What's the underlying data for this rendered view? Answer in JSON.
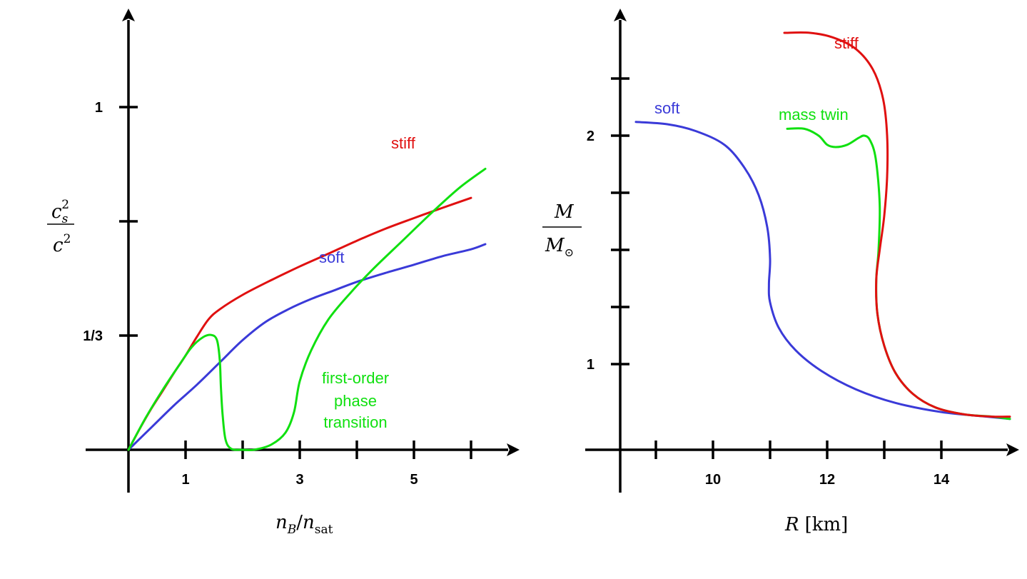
{
  "chart_data": [
    {
      "type": "line",
      "panel": "left",
      "xlabel": {
        "base": "n",
        "sub1": "B",
        "sep": "/",
        "base2": "n",
        "sub2": "sat"
      },
      "ylabel": {
        "num_base": "c",
        "num_sub": "s",
        "num_sup": "2",
        "den_base": "c",
        "den_sup": "2"
      },
      "xlim": [
        0,
        6.7
      ],
      "ylim": [
        -0.3,
        1.3
      ],
      "x_ticks": [
        1,
        2,
        3,
        4,
        5,
        6
      ],
      "x_tick_labels": [
        {
          "x": 1,
          "label": "1"
        },
        {
          "x": 3,
          "label": "3"
        },
        {
          "x": 5,
          "label": "5"
        }
      ],
      "y_ticks": [
        0.3333,
        0.6667,
        1.0
      ],
      "y_tick_labels": [
        {
          "y": 0.3333,
          "label": "1/3"
        },
        {
          "y": 1.0,
          "label": "1"
        }
      ],
      "series": [
        {
          "name": "stiff",
          "color": "#e01010",
          "points": [
            [
              0,
              0
            ],
            [
              0.2,
              0.062
            ],
            [
              0.4,
              0.12
            ],
            [
              0.6,
              0.172
            ],
            [
              0.8,
              0.225
            ],
            [
              1.0,
              0.275
            ],
            [
              1.2,
              0.33
            ],
            [
              1.4,
              0.38
            ],
            [
              1.6,
              0.41
            ],
            [
              2.0,
              0.452
            ],
            [
              2.5,
              0.495
            ],
            [
              3.0,
              0.535
            ],
            [
              3.5,
              0.572
            ],
            [
              4.0,
              0.61
            ],
            [
              4.5,
              0.645
            ],
            [
              5.0,
              0.676
            ],
            [
              5.5,
              0.706
            ],
            [
              6.0,
              0.735
            ]
          ]
        },
        {
          "name": "soft",
          "color": "#3a3ad8",
          "points": [
            [
              0,
              0
            ],
            [
              0.4,
              0.065
            ],
            [
              0.8,
              0.13
            ],
            [
              1.2,
              0.19
            ],
            [
              1.6,
              0.255
            ],
            [
              2.0,
              0.32
            ],
            [
              2.4,
              0.373
            ],
            [
              2.8,
              0.41
            ],
            [
              3.2,
              0.44
            ],
            [
              3.6,
              0.465
            ],
            [
              4.0,
              0.49
            ],
            [
              4.5,
              0.516
            ],
            [
              5.0,
              0.54
            ],
            [
              5.5,
              0.565
            ],
            [
              6.0,
              0.585
            ],
            [
              6.25,
              0.6
            ]
          ]
        },
        {
          "name": "first-order phase transition",
          "color": "#10e010",
          "points": [
            [
              0,
              0
            ],
            [
              0.3,
              0.093
            ],
            [
              0.6,
              0.175
            ],
            [
              0.9,
              0.25
            ],
            [
              1.1,
              0.298
            ],
            [
              1.3,
              0.328
            ],
            [
              1.45,
              0.335
            ],
            [
              1.55,
              0.32
            ],
            [
              1.6,
              0.26
            ],
            [
              1.62,
              0.18
            ],
            [
              1.65,
              0.1
            ],
            [
              1.7,
              0.03
            ],
            [
              1.8,
              0.003
            ],
            [
              2.0,
              0.0
            ],
            [
              2.2,
              0.0
            ],
            [
              2.5,
              0.015
            ],
            [
              2.75,
              0.05
            ],
            [
              2.9,
              0.11
            ],
            [
              3.0,
              0.2
            ],
            [
              3.2,
              0.29
            ],
            [
              3.5,
              0.38
            ],
            [
              3.9,
              0.46
            ],
            [
              4.3,
              0.53
            ],
            [
              4.8,
              0.61
            ],
            [
              5.3,
              0.69
            ],
            [
              5.8,
              0.765
            ],
            [
              6.25,
              0.82
            ]
          ]
        }
      ],
      "annotations": [
        {
          "text": "stiff",
          "color": "#e01010"
        },
        {
          "text": "soft",
          "color": "#3a3ad8"
        },
        {
          "lines": [
            "first-order",
            "phase",
            "transition"
          ],
          "color": "#10e010"
        }
      ]
    },
    {
      "type": "line",
      "panel": "right",
      "xlabel": {
        "base": "R",
        "unit": "[km]"
      },
      "ylabel": {
        "num_base": "M",
        "den_base": "M",
        "den_sub": "⊙"
      },
      "xlim": [
        8.0,
        15.2
      ],
      "ylim": [
        0.25,
        2.8
      ],
      "x_ticks": [
        9,
        10,
        11,
        12,
        13,
        14
      ],
      "x_tick_labels": [
        {
          "x": 10,
          "label": "10"
        },
        {
          "x": 12,
          "label": "12"
        },
        {
          "x": 14,
          "label": "14"
        }
      ],
      "y_ticks": [
        1.0,
        1.25,
        1.5,
        1.75,
        2.0,
        2.25
      ],
      "y_tick_labels": [
        {
          "y": 1.0,
          "label": "1"
        },
        {
          "y": 2.0,
          "label": "2"
        }
      ],
      "series": [
        {
          "name": "soft",
          "color": "#3a3ad8",
          "points": [
            [
              8.65,
              2.06
            ],
            [
              9.2,
              2.05
            ],
            [
              9.7,
              2.02
            ],
            [
              10.2,
              1.96
            ],
            [
              10.55,
              1.86
            ],
            [
              10.8,
              1.74
            ],
            [
              10.95,
              1.6
            ],
            [
              11.0,
              1.46
            ],
            [
              10.98,
              1.35
            ],
            [
              11.0,
              1.27
            ],
            [
              11.15,
              1.16
            ],
            [
              11.45,
              1.06
            ],
            [
              11.9,
              0.97
            ],
            [
              12.5,
              0.89
            ],
            [
              13.2,
              0.83
            ],
            [
              14.0,
              0.79
            ],
            [
              14.8,
              0.77
            ],
            [
              15.2,
              0.76
            ]
          ]
        },
        {
          "name": "stiff",
          "color": "#e01010",
          "points": [
            [
              11.25,
              2.45
            ],
            [
              11.7,
              2.45
            ],
            [
              12.1,
              2.43
            ],
            [
              12.5,
              2.38
            ],
            [
              12.8,
              2.29
            ],
            [
              12.98,
              2.16
            ],
            [
              13.05,
              2.0
            ],
            [
              13.05,
              1.82
            ],
            [
              13.0,
              1.65
            ],
            [
              12.92,
              1.5
            ],
            [
              12.86,
              1.37
            ],
            [
              12.88,
              1.22
            ],
            [
              13.0,
              1.08
            ],
            [
              13.2,
              0.96
            ],
            [
              13.5,
              0.87
            ],
            [
              13.9,
              0.81
            ],
            [
              14.4,
              0.78
            ],
            [
              14.9,
              0.77
            ],
            [
              15.2,
              0.77
            ]
          ]
        },
        {
          "name": "mass twin",
          "color": "#10e010",
          "points": [
            [
              11.3,
              2.03
            ],
            [
              11.6,
              2.03
            ],
            [
              11.85,
              2.0
            ],
            [
              12.0,
              1.96
            ],
            [
              12.15,
              1.95
            ],
            [
              12.35,
              1.96
            ],
            [
              12.55,
              1.99
            ],
            [
              12.65,
              2.0
            ],
            [
              12.75,
              1.98
            ],
            [
              12.85,
              1.9
            ],
            [
              12.92,
              1.7
            ],
            [
              12.9,
              1.5
            ],
            [
              12.86,
              1.37
            ],
            [
              12.88,
              1.22
            ],
            [
              13.0,
              1.08
            ],
            [
              13.2,
              0.96
            ],
            [
              13.5,
              0.87
            ],
            [
              13.9,
              0.81
            ],
            [
              14.4,
              0.78
            ],
            [
              14.9,
              0.77
            ],
            [
              15.2,
              0.76
            ]
          ]
        }
      ],
      "annotations": [
        {
          "text": "stiff",
          "color": "#e01010"
        },
        {
          "text": "soft",
          "color": "#3a3ad8"
        },
        {
          "text": "mass twin",
          "color": "#10e010"
        }
      ]
    }
  ]
}
